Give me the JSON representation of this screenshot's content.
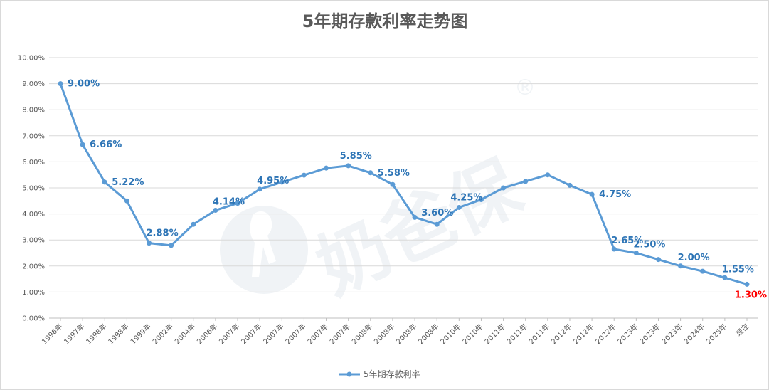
{
  "chart_data": {
    "type": "line",
    "title": "5年期存款利率走势图",
    "xlabel": "",
    "ylabel": "",
    "ylim": [
      0,
      10
    ],
    "y_tick_step": 1,
    "y_tick_format": "percent_2dp",
    "grid": true,
    "legend_position": "bottom",
    "categories": [
      "1996年",
      "1997年",
      "1998年",
      "1998年",
      "1999年",
      "2002年",
      "2004年",
      "2006年",
      "2007年",
      "2007年",
      "2007年",
      "2007年",
      "2007年",
      "2007年",
      "2008年",
      "2008年",
      "2008年",
      "2008年",
      "2010年",
      "2010年",
      "2011年",
      "2011年",
      "2011年",
      "2012年",
      "2012年",
      "2022年",
      "2023年",
      "2023年",
      "2023年",
      "2024年",
      "2025年",
      "现在"
    ],
    "series": [
      {
        "name": "5年期存款利率",
        "color": "#5b9bd5",
        "values": [
          9.0,
          6.66,
          5.22,
          4.5,
          2.88,
          2.79,
          3.6,
          4.14,
          4.41,
          4.95,
          5.22,
          5.49,
          5.76,
          5.85,
          5.58,
          5.13,
          3.87,
          3.6,
          4.25,
          4.55,
          5.0,
          5.25,
          5.5,
          5.1,
          4.75,
          2.65,
          2.5,
          2.25,
          2.0,
          1.8,
          1.55,
          1.3
        ]
      }
    ],
    "data_labels": [
      {
        "index": 0,
        "text": "9.00%",
        "color": "#2e75b6"
      },
      {
        "index": 1,
        "text": "6.66%",
        "color": "#2e75b6"
      },
      {
        "index": 2,
        "text": "5.22%",
        "color": "#2e75b6"
      },
      {
        "index": 4,
        "text": "2.88%",
        "color": "#2e75b6"
      },
      {
        "index": 7,
        "text": "4.14%",
        "color": "#2e75b6"
      },
      {
        "index": 9,
        "text": "4.95%",
        "color": "#2e75b6"
      },
      {
        "index": 13,
        "text": "5.85%",
        "color": "#2e75b6"
      },
      {
        "index": 14,
        "text": "5.58%",
        "color": "#2e75b6"
      },
      {
        "index": 17,
        "text": "3.60%",
        "color": "#2e75b6"
      },
      {
        "index": 18,
        "text": "4.25%",
        "color": "#2e75b6"
      },
      {
        "index": 24,
        "text": "4.75%",
        "color": "#2e75b6"
      },
      {
        "index": 25,
        "text": "2.65%",
        "color": "#2e75b6"
      },
      {
        "index": 26,
        "text": "2.50%",
        "color": "#2e75b6"
      },
      {
        "index": 28,
        "text": "2.00%",
        "color": "#2e75b6"
      },
      {
        "index": 30,
        "text": "1.55%",
        "color": "#2e75b6"
      },
      {
        "index": 31,
        "text": "1.30%",
        "color": "#ff0000"
      }
    ],
    "watermark": "奶爸保®"
  }
}
